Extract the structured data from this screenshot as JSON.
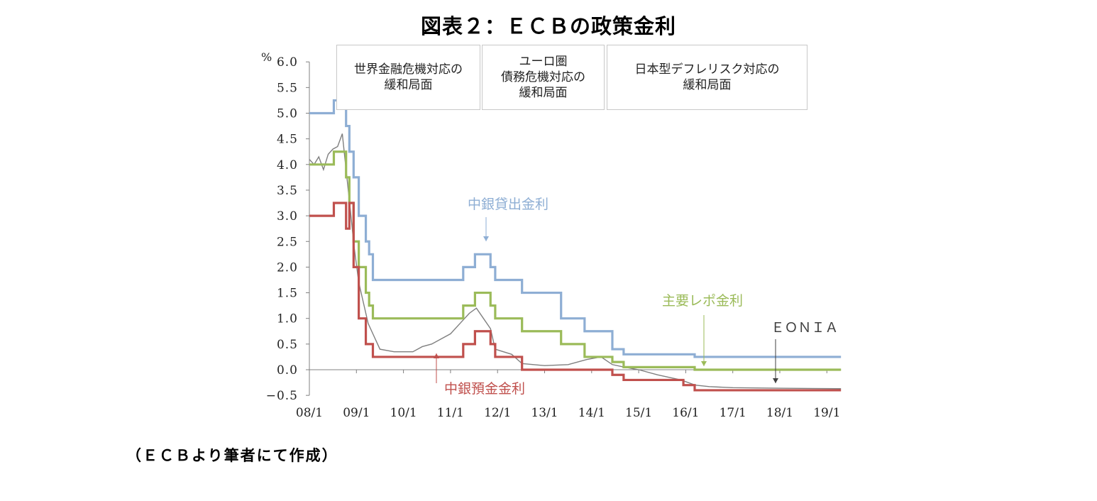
{
  "title": "図表２：ＥＣＢの政策金利",
  "source_note": "（ＥＣＢより筆者にて作成）",
  "chart_data": {
    "type": "line",
    "title": "図表２：ＥＣＢの政策金利",
    "xlabel": "",
    "ylabel": "%",
    "ylim": [
      -0.5,
      6.0
    ],
    "yticks": [
      "6.0",
      "5.5",
      "5.0",
      "4.5",
      "4.0",
      "3.5",
      "3.0",
      "2.5",
      "2.0",
      "1.5",
      "1.0",
      "0.5",
      "0.0",
      "−0.5"
    ],
    "xticks": [
      "08/1",
      "09/1",
      "10/1",
      "11/1",
      "12/1",
      "13/1",
      "14/1",
      "15/1",
      "16/1",
      "17/1",
      "18/1",
      "19/1"
    ],
    "grid": false,
    "legend_position": "inline labels",
    "phases": [
      {
        "lines": [
          "世界金融危機対応の",
          "緩和局面"
        ]
      },
      {
        "lines": [
          "ユーロ圏",
          "債務危機対応の",
          "緩和局面"
        ]
      },
      {
        "lines": [
          "日本型デフレリスク対応の",
          "緩和局面"
        ]
      }
    ],
    "series": [
      {
        "name": "中銀貸出金利",
        "color": "#8eaed4",
        "step": true,
        "points": [
          [
            2008.0,
            5.0
          ],
          [
            2008.52,
            5.25
          ],
          [
            2008.78,
            4.75
          ],
          [
            2008.85,
            4.25
          ],
          [
            2008.94,
            3.75
          ],
          [
            2009.05,
            3.0
          ],
          [
            2009.2,
            2.5
          ],
          [
            2009.27,
            2.25
          ],
          [
            2009.35,
            1.75
          ],
          [
            2011.27,
            2.0
          ],
          [
            2011.52,
            2.25
          ],
          [
            2011.85,
            2.0
          ],
          [
            2011.95,
            1.75
          ],
          [
            2012.52,
            1.5
          ],
          [
            2013.35,
            1.0
          ],
          [
            2013.85,
            0.75
          ],
          [
            2014.44,
            0.4
          ],
          [
            2014.68,
            0.3
          ],
          [
            2015.95,
            0.3
          ],
          [
            2016.19,
            0.25
          ],
          [
            2019.3,
            0.25
          ]
        ]
      },
      {
        "name": "主要レポ金利",
        "color": "#9bbb59",
        "step": true,
        "points": [
          [
            2008.0,
            4.0
          ],
          [
            2008.52,
            4.25
          ],
          [
            2008.78,
            3.75
          ],
          [
            2008.85,
            3.25
          ],
          [
            2008.94,
            2.5
          ],
          [
            2009.05,
            2.0
          ],
          [
            2009.2,
            1.5
          ],
          [
            2009.27,
            1.25
          ],
          [
            2009.35,
            1.0
          ],
          [
            2011.27,
            1.25
          ],
          [
            2011.52,
            1.5
          ],
          [
            2011.85,
            1.25
          ],
          [
            2011.95,
            1.0
          ],
          [
            2012.52,
            0.75
          ],
          [
            2013.35,
            0.5
          ],
          [
            2013.85,
            0.25
          ],
          [
            2014.44,
            0.15
          ],
          [
            2014.68,
            0.05
          ],
          [
            2016.19,
            0.0
          ],
          [
            2019.3,
            0.0
          ]
        ]
      },
      {
        "name": "中銀預金金利",
        "color": "#c0504d",
        "step": true,
        "points": [
          [
            2008.0,
            3.0
          ],
          [
            2008.52,
            3.25
          ],
          [
            2008.78,
            2.75
          ],
          [
            2008.85,
            3.25
          ],
          [
            2008.94,
            2.0
          ],
          [
            2009.05,
            1.0
          ],
          [
            2009.2,
            0.5
          ],
          [
            2009.35,
            0.25
          ],
          [
            2011.27,
            0.5
          ],
          [
            2011.52,
            0.75
          ],
          [
            2011.85,
            0.5
          ],
          [
            2011.95,
            0.25
          ],
          [
            2012.52,
            0.0
          ],
          [
            2014.44,
            -0.1
          ],
          [
            2014.68,
            -0.2
          ],
          [
            2015.95,
            -0.3
          ],
          [
            2016.19,
            -0.4
          ],
          [
            2019.3,
            -0.4
          ]
        ]
      },
      {
        "name": "EONIA",
        "color": "#7f7f7f",
        "step": false,
        "points": [
          [
            2008.0,
            4.1
          ],
          [
            2008.1,
            4.0
          ],
          [
            2008.2,
            4.15
          ],
          [
            2008.3,
            3.9
          ],
          [
            2008.4,
            4.2
          ],
          [
            2008.5,
            4.3
          ],
          [
            2008.6,
            4.35
          ],
          [
            2008.7,
            4.6
          ],
          [
            2008.78,
            3.9
          ],
          [
            2008.85,
            3.3
          ],
          [
            2008.95,
            2.4
          ],
          [
            2009.05,
            1.7
          ],
          [
            2009.15,
            1.3
          ],
          [
            2009.25,
            0.9
          ],
          [
            2009.35,
            0.7
          ],
          [
            2009.5,
            0.4
          ],
          [
            2009.8,
            0.35
          ],
          [
            2010.2,
            0.35
          ],
          [
            2010.4,
            0.45
          ],
          [
            2010.6,
            0.5
          ],
          [
            2010.8,
            0.6
          ],
          [
            2011.0,
            0.7
          ],
          [
            2011.2,
            0.9
          ],
          [
            2011.4,
            1.1
          ],
          [
            2011.55,
            1.2
          ],
          [
            2011.7,
            1.0
          ],
          [
            2011.85,
            0.8
          ],
          [
            2011.95,
            0.4
          ],
          [
            2012.3,
            0.3
          ],
          [
            2012.52,
            0.12
          ],
          [
            2013.0,
            0.08
          ],
          [
            2013.5,
            0.1
          ],
          [
            2013.9,
            0.2
          ],
          [
            2014.2,
            0.25
          ],
          [
            2014.44,
            0.1
          ],
          [
            2014.7,
            0.05
          ],
          [
            2015.0,
            0.0
          ],
          [
            2015.4,
            -0.1
          ],
          [
            2015.9,
            -0.2
          ],
          [
            2016.2,
            -0.3
          ],
          [
            2016.5,
            -0.33
          ],
          [
            2017.0,
            -0.35
          ],
          [
            2018.0,
            -0.36
          ],
          [
            2019.3,
            -0.37
          ]
        ]
      }
    ],
    "annotations": [
      {
        "text": "中銀貸出金利",
        "color": "#8eaed4",
        "arrow_to": [
          2011.75,
          2.25
        ]
      },
      {
        "text": "主要レポ金利",
        "color": "#9bbb59",
        "arrow_to": [
          2016.7,
          0.0
        ]
      },
      {
        "text": "ＥＯＮＩＡ",
        "color": "#404040",
        "arrow_to": [
          2018.0,
          -0.3
        ]
      },
      {
        "text": "中銀預金金利",
        "color": "#c0504d",
        "arrow_to": [
          2010.7,
          0.25
        ]
      }
    ]
  }
}
